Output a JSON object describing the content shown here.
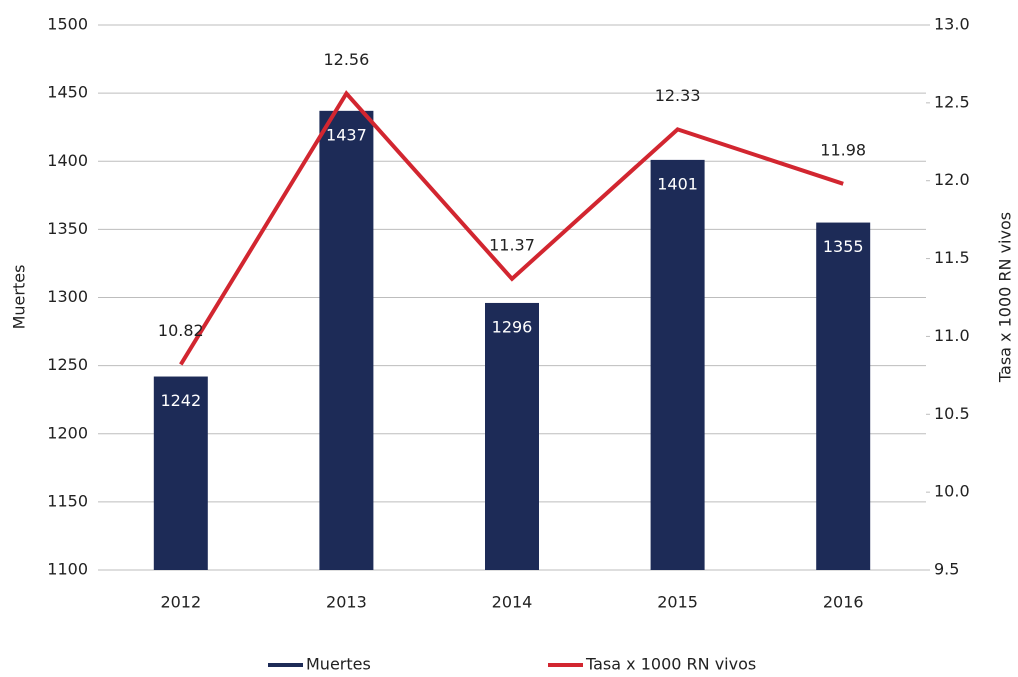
{
  "chart_data": {
    "type": "combo",
    "categories": [
      "2012",
      "2013",
      "2014",
      "2015",
      "2016"
    ],
    "series": [
      {
        "name": "Muertes",
        "type": "bar",
        "color": "#1d2b57",
        "values": [
          1242,
          1437,
          1296,
          1401,
          1355
        ]
      },
      {
        "name": "Tasa x 1000 RN vivos",
        "type": "line",
        "axis": "y2",
        "color": "#d22630",
        "values": [
          10.82,
          12.56,
          11.37,
          12.33,
          11.98
        ]
      }
    ],
    "ylabel": "Muertes",
    "y2label": "Tasa x 1000 RN vivos",
    "ylim": [
      1100,
      1500
    ],
    "yticks": [
      1100,
      1150,
      1200,
      1250,
      1300,
      1350,
      1400,
      1450,
      1500
    ],
    "y2lim": [
      9.5,
      13
    ],
    "y2ticks": [
      9.5,
      {
        "value": 10,
        "label": "10.0"
      },
      10.5,
      {
        "value": 11,
        "label": "11.0"
      },
      11.5,
      {
        "value": 12,
        "label": "12.0"
      },
      12.5,
      {
        "value": 13,
        "label": "13.0"
      }
    ],
    "grid": true,
    "legend": "bottom"
  }
}
